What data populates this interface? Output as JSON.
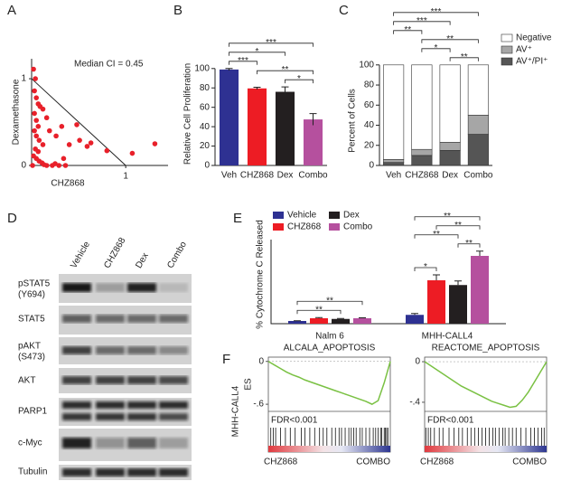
{
  "panel_labels": [
    "A",
    "B",
    "C",
    "D",
    "E",
    "F"
  ],
  "chart_data": [
    {
      "type": "scatter",
      "annotation": "Median CI = 0.45",
      "xlabel": "CHZ868",
      "ylabel": "Dexamethasone",
      "color": "#e8202a",
      "x": [
        0.02,
        0.04,
        0.03,
        0.05,
        0.07,
        0.09,
        0.12,
        0.16,
        0.03,
        0.05,
        0.07,
        0.03,
        0.05,
        0.08,
        0.12,
        0.04,
        0.07,
        0.02,
        0.05,
        0.08,
        0.11,
        0.13,
        0.16,
        0.22,
        0.29,
        0.36,
        0.01,
        0.25,
        0.34,
        0.26,
        0.32,
        0.19,
        0.4,
        0.48,
        0.51,
        0.59,
        0.63,
        0.8,
        1.07,
        1.31
      ],
      "y": [
        1.11,
        1.0,
        0.86,
        0.78,
        0.71,
        0.68,
        0.65,
        0.55,
        0.6,
        0.52,
        0.45,
        0.4,
        0.34,
        0.29,
        0.24,
        0.19,
        0.16,
        0.11,
        0.08,
        0.05,
        0.03,
        0.01,
        0,
        0,
        0,
        0,
        0,
        0.02,
        0.08,
        0.34,
        0.45,
        0.4,
        0.24,
        0.47,
        0.29,
        0.22,
        0.26,
        0.17,
        0.14,
        0.25
      ],
      "reference_line": {
        "x": [
          0,
          1
        ],
        "y": [
          1,
          0
        ]
      },
      "xlim": [
        0,
        1.45
      ],
      "ylim": [
        0,
        1.23
      ],
      "xticks": [
        1
      ],
      "yticks": [
        0,
        1
      ]
    },
    {
      "type": "bar",
      "ylabel": "Relative Cell Proliferation",
      "categories": [
        "Veh",
        "CHZ868",
        "Dex",
        "Combo"
      ],
      "values": [
        99,
        79.5,
        76,
        47.5
      ],
      "errors": [
        1,
        1.2,
        5,
        6
      ],
      "colors": [
        "#2e3192",
        "#ed1c24",
        "#231f20",
        "#b5509e"
      ],
      "ylim": [
        0,
        125
      ],
      "yticks": [
        0,
        20,
        40,
        60,
        80,
        100
      ],
      "significance": [
        {
          "pair": [
            2,
            3
          ],
          "label": "*"
        },
        {
          "pair": [
            1,
            3
          ],
          "label": "**"
        },
        {
          "pair": [
            0,
            1
          ],
          "label": "***"
        },
        {
          "pair": [
            0,
            2
          ],
          "label": "*"
        },
        {
          "pair": [
            0,
            3
          ],
          "label": "***"
        }
      ]
    },
    {
      "type": "stacked_bar",
      "ylabel": "Percent of Cells",
      "categories": [
        "Veh",
        "CHZ868",
        "Dex",
        "Combo"
      ],
      "series": [
        {
          "name": "AV⁺/PI⁺",
          "color": "#555555",
          "values": [
            3,
            10,
            15,
            31
          ]
        },
        {
          "name": "AV⁺",
          "color": "#a6a6a6",
          "values": [
            3,
            6,
            8,
            19
          ]
        },
        {
          "name": "Negative",
          "color": "#ffffff",
          "values": [
            94,
            84,
            77,
            50
          ]
        }
      ],
      "ylim": [
        0,
        125
      ],
      "yticks": [
        0,
        20,
        40,
        60,
        80,
        100
      ],
      "significance": [
        {
          "pair": [
            2,
            3
          ],
          "label": "**"
        },
        {
          "pair": [
            1,
            2
          ],
          "label": "*"
        },
        {
          "pair": [
            1,
            3
          ],
          "label": "**"
        },
        {
          "pair": [
            0,
            1
          ],
          "label": "**"
        },
        {
          "pair": [
            0,
            2
          ],
          "label": "***"
        },
        {
          "pair": [
            0,
            3
          ],
          "label": "***"
        }
      ]
    },
    {
      "type": "grouped_bar",
      "ylabel": "% Cytochrome C Released",
      "categories": [
        "Nalm 6",
        "MHH-CALL4"
      ],
      "series": [
        {
          "name": "Vehicle",
          "color": "#2e3192",
          "values": [
            2,
            6.5
          ],
          "errors": [
            0.2,
            1
          ]
        },
        {
          "name": "CHZ868",
          "color": "#ed1c24",
          "values": [
            4,
            32
          ],
          "errors": [
            0.5,
            4
          ]
        },
        {
          "name": "Dex",
          "color": "#231f20",
          "values": [
            3.5,
            28.5
          ],
          "errors": [
            0.3,
            3
          ]
        },
        {
          "name": "Combo",
          "color": "#b5509e",
          "values": [
            4,
            50
          ],
          "errors": [
            0.3,
            3.5
          ]
        }
      ],
      "ylim": [
        0,
        62
      ],
      "significance": [
        {
          "group": 0,
          "pair": [
            0,
            2
          ],
          "label": "**"
        },
        {
          "group": 0,
          "pair": [
            0,
            3
          ],
          "label": "**"
        },
        {
          "group": 1,
          "pair": [
            0,
            1
          ],
          "label": "*"
        },
        {
          "group": 1,
          "pair": [
            2,
            3
          ],
          "label": "**"
        },
        {
          "group": 1,
          "pair": [
            0,
            2
          ],
          "label": "**"
        },
        {
          "group": 1,
          "pair": [
            1,
            3
          ],
          "label": "**"
        },
        {
          "group": 1,
          "pair": [
            0,
            3
          ],
          "label": "**"
        }
      ]
    },
    {
      "type": "line",
      "title": "ALCALA_APOPTOSIS",
      "ylabel": "ES",
      "sample": "MHH-CALL4",
      "annotation": "FDR<0.001",
      "x_labels": [
        "CHZ868",
        "COMBO"
      ],
      "color": "#7ac143",
      "x": [
        0,
        0.05,
        0.1,
        0.15,
        0.2,
        0.25,
        0.3,
        0.35,
        0.4,
        0.45,
        0.5,
        0.55,
        0.6,
        0.65,
        0.7,
        0.75,
        0.8,
        0.85,
        0.9,
        0.95,
        1
      ],
      "values": [
        0,
        -0.05,
        -0.1,
        -0.15,
        -0.19,
        -0.22,
        -0.26,
        -0.29,
        -0.32,
        -0.35,
        -0.38,
        -0.41,
        -0.44,
        -0.47,
        -0.5,
        -0.53,
        -0.56,
        -0.6,
        -0.55,
        -0.3,
        0
      ],
      "hits": [
        0.02,
        0.04,
        0.06,
        0.1,
        0.14,
        0.18,
        0.22,
        0.27,
        0.3,
        0.34,
        0.38,
        0.42,
        0.45,
        0.48,
        0.52,
        0.55,
        0.58,
        0.6,
        0.63,
        0.66,
        0.68,
        0.7,
        0.72,
        0.75,
        0.77,
        0.8,
        0.83,
        0.86,
        0.88,
        0.9,
        0.92,
        0.93,
        0.95,
        0.96,
        0.97,
        0.98
      ],
      "xlim": [
        0,
        1
      ],
      "ylim": [
        -0.7,
        0.06
      ],
      "yticks": [
        0,
        {
          "value": -0.6,
          "label": "-.6"
        }
      ]
    },
    {
      "type": "line",
      "title": "REACTOME_APOPTOSIS",
      "annotation": "FDR<0.001",
      "x_labels": [
        "CHZ868",
        "COMBO"
      ],
      "color": "#7ac143",
      "x": [
        0,
        0.05,
        0.1,
        0.15,
        0.2,
        0.25,
        0.3,
        0.35,
        0.4,
        0.45,
        0.5,
        0.55,
        0.6,
        0.65,
        0.7,
        0.75,
        0.8,
        0.85,
        0.9,
        0.95,
        1
      ],
      "values": [
        0,
        -0.04,
        -0.08,
        -0.12,
        -0.16,
        -0.2,
        -0.24,
        -0.27,
        -0.3,
        -0.33,
        -0.36,
        -0.39,
        -0.41,
        -0.43,
        -0.45,
        -0.44,
        -0.38,
        -0.3,
        -0.2,
        -0.1,
        0
      ],
      "hits": [
        0.01,
        0.03,
        0.05,
        0.08,
        0.12,
        0.15,
        0.2,
        0.24,
        0.28,
        0.31,
        0.35,
        0.38,
        0.41,
        0.44,
        0.47,
        0.5,
        0.53,
        0.56,
        0.58,
        0.61,
        0.64,
        0.66,
        0.69,
        0.72,
        0.75,
        0.79,
        0.83,
        0.87,
        0.9,
        0.93,
        0.96,
        0.98
      ],
      "xlim": [
        0,
        1
      ],
      "ylim": [
        -0.49,
        0.045
      ],
      "yticks": [
        0,
        {
          "value": -0.4,
          "label": "-.4"
        }
      ]
    }
  ],
  "blot": {
    "lanes": [
      "Vehicle",
      "CHZ868",
      "Dex",
      "Combo"
    ],
    "rows": [
      {
        "label": "pSTAT5",
        "site": "(Y694)"
      },
      {
        "label": "STAT5"
      },
      {
        "label": "pAKT",
        "site": "(S473)"
      },
      {
        "label": "AKT"
      },
      {
        "label": "PARP1"
      },
      {
        "label": "c-Myc"
      },
      {
        "label": "Tubulin"
      }
    ]
  }
}
